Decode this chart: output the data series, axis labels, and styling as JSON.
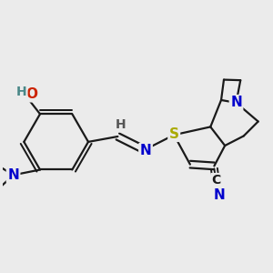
{
  "background_color": "#ebebeb",
  "figsize": [
    3.0,
    3.0
  ],
  "dpi": 100,
  "bond_color": "#1a1a1a",
  "bond_lw": 1.6,
  "xlim": [
    -1.5,
    3.5
  ],
  "ylim": [
    -1.8,
    2.0
  ]
}
